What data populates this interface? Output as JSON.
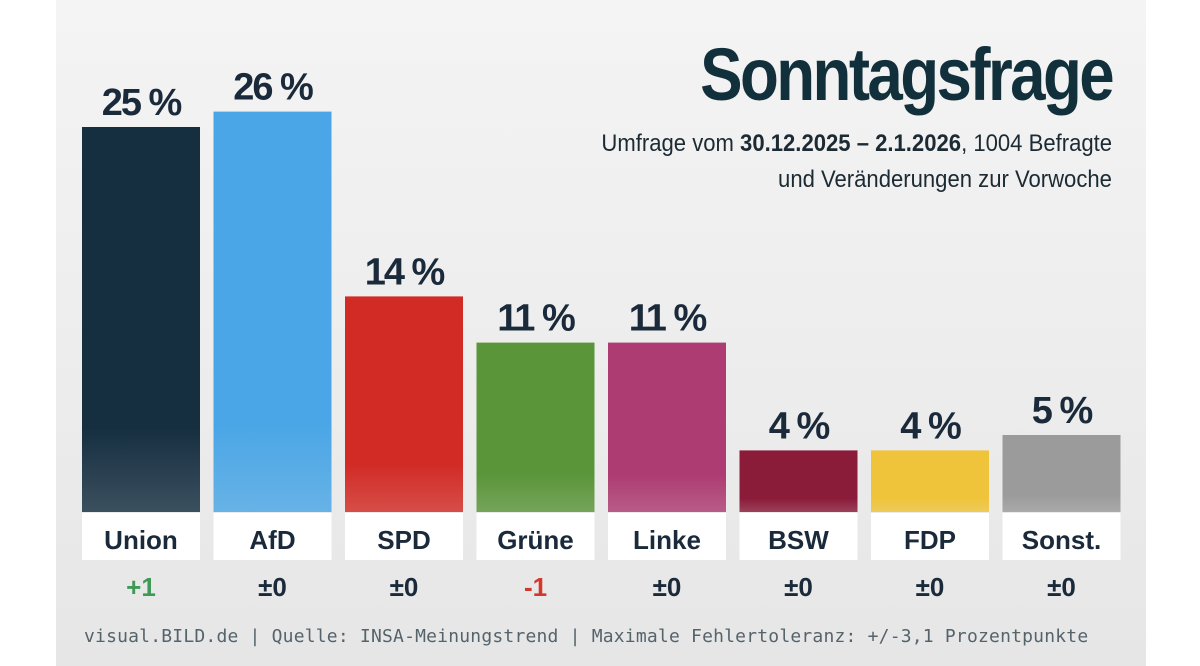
{
  "header": {
    "title": "Sonntagsfrage",
    "subtitle_prefix": "Umfrage vom ",
    "subtitle_dates": "30.12.2025 – 2.1.2026",
    "subtitle_suffix": ", 1004 Befragte",
    "subtitle_line2": "und Veränderungen zur Vorwoche"
  },
  "chart_data": {
    "type": "bar",
    "title": "Sonntagsfrage",
    "xlabel": "",
    "ylabel": "",
    "ylim": [
      0,
      26
    ],
    "unit": "%",
    "categories": [
      "Union",
      "AfD",
      "SPD",
      "Grüne",
      "Linke",
      "BSW",
      "FDP",
      "Sonst."
    ],
    "values": [
      25,
      26,
      14,
      11,
      11,
      4,
      4,
      5
    ],
    "value_labels": [
      "25 %",
      "26 %",
      "14 %",
      "11 %",
      "11 %",
      "4 %",
      "4 %",
      "5 %"
    ],
    "changes": [
      "+1",
      "±0",
      "±0",
      "-1",
      "±0",
      "±0",
      "±0",
      "±0"
    ],
    "colors": [
      "#152e40",
      "#4aa6e6",
      "#d22b25",
      "#5b953a",
      "#ad3c72",
      "#8a1c3a",
      "#efc43a",
      "#9b9b9b"
    ],
    "change_colors": {
      "positive": "#3f9a57",
      "negative": "#d4382c",
      "neutral": "#1a2a3a"
    }
  },
  "footer": {
    "text": "visual.BILD.de | Quelle: INSA-Meinungstrend | Maximale Fehlertoleranz: +/-3,1 Prozentpunkte"
  }
}
